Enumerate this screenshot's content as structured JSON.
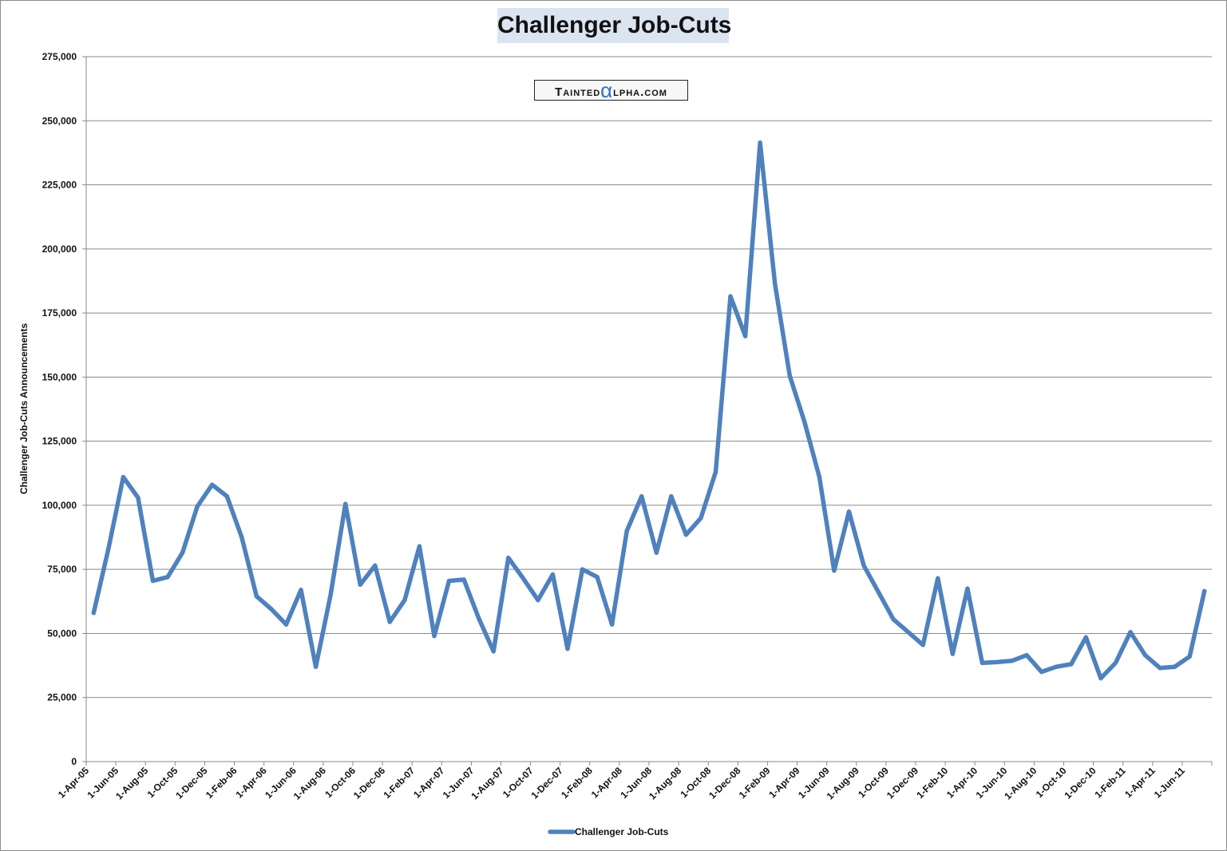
{
  "chart_data": {
    "type": "line",
    "title": "Challenger Job-Cuts",
    "ylabel": "Challenger Job-Cuts Announcements",
    "xlabel": "",
    "ylim": [
      0,
      275000
    ],
    "y_ticks": [
      "0",
      "25,000",
      "50,000",
      "75,000",
      "100,000",
      "125,000",
      "150,000",
      "175,000",
      "200,000",
      "225,000",
      "250,000",
      "275,000"
    ],
    "x_tick_labels": [
      "1-Apr-05",
      "1-Jun-05",
      "1-Aug-05",
      "1-Oct-05",
      "1-Dec-05",
      "1-Feb-06",
      "1-Apr-06",
      "1-Jun-06",
      "1-Aug-06",
      "1-Oct-06",
      "1-Dec-06",
      "1-Feb-07",
      "1-Apr-07",
      "1-Jun-07",
      "1-Aug-07",
      "1-Oct-07",
      "1-Dec-07",
      "1-Feb-08",
      "1-Apr-08",
      "1-Jun-08",
      "1-Aug-08",
      "1-Oct-08",
      "1-Dec-08",
      "1-Feb-09",
      "1-Apr-09",
      "1-Jun-09",
      "1-Aug-09",
      "1-Oct-09",
      "1-Dec-09",
      "1-Feb-10",
      "1-Apr-10",
      "1-Jun-10",
      "1-Aug-10",
      "1-Oct-10",
      "1-Dec-10",
      "1-Feb-11",
      "1-Apr-11",
      "1-Jun-11"
    ],
    "grid": true,
    "legend_position": "bottom",
    "series": [
      {
        "name": "Challenger Job-Cuts",
        "color": "#4f81bd",
        "values": [
          58000,
          83000,
          111000,
          103000,
          70500,
          72000,
          81500,
          99500,
          108000,
          103500,
          87500,
          64500,
          59500,
          53500,
          67000,
          37000,
          65000,
          100500,
          69000,
          76500,
          54500,
          63000,
          84000,
          49000,
          70500,
          71000,
          56000,
          43000,
          79500,
          71500,
          63000,
          73000,
          44000,
          75000,
          72000,
          53500,
          90000,
          103500,
          81500,
          103500,
          88500,
          95000,
          113000,
          181500,
          166000,
          241500,
          186500,
          150500,
          132500,
          111000,
          74500,
          97500,
          76500,
          66000,
          55500,
          50500,
          45500,
          71500,
          42000,
          67500,
          38500,
          38800,
          39300,
          41500,
          35000,
          37000,
          38000,
          48500,
          32500,
          38500,
          50500,
          41500,
          36500,
          37000,
          41000,
          66500
        ]
      }
    ]
  },
  "watermark": {
    "part1": "Tainted",
    "alpha": "α",
    "part2": "lpha.com"
  }
}
